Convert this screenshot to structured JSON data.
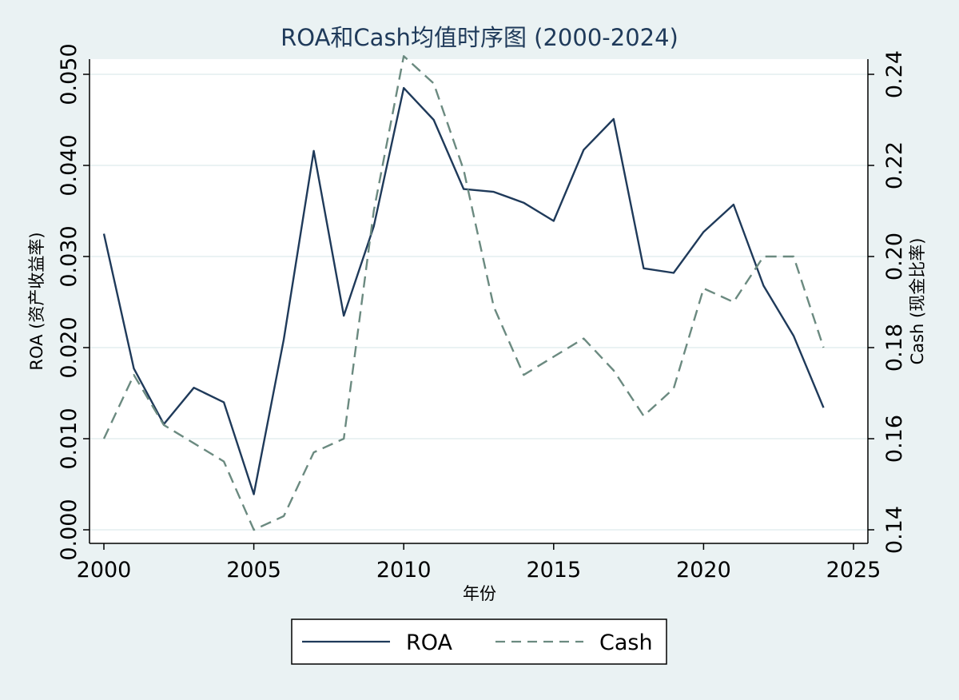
{
  "chart_data": {
    "type": "line",
    "title": "ROA和Cash均值时序图 (2000-2024)",
    "xlabel": "年份",
    "ylabel_left": "ROA (资产收益率)",
    "ylabel_right": "Cash (现金比率)",
    "xlim": [
      2000,
      2025
    ],
    "x_ticks": [
      2000,
      2005,
      2010,
      2015,
      2020,
      2025
    ],
    "ylim_left": [
      0.0,
      0.05
    ],
    "y_ticks_left": [
      "0.000",
      "0.010",
      "0.020",
      "0.030",
      "0.040",
      "0.050"
    ],
    "ylim_right": [
      0.14,
      0.24
    ],
    "y_ticks_right": [
      "0.14",
      "0.16",
      "0.18",
      "0.20",
      "0.22",
      "0.24"
    ],
    "grid": true,
    "legend_position": "bottom",
    "x": [
      2000,
      2001,
      2002,
      2003,
      2004,
      2005,
      2006,
      2007,
      2008,
      2009,
      2010,
      2011,
      2012,
      2013,
      2014,
      2015,
      2016,
      2017,
      2018,
      2019,
      2020,
      2021,
      2022,
      2023,
      2024
    ],
    "series": [
      {
        "name": "ROA",
        "axis": "left",
        "style": "solid",
        "color": "#1f3a5a",
        "values": [
          0.0325,
          0.0177,
          0.0116,
          0.0156,
          0.014,
          0.0039,
          0.0209,
          0.0416,
          0.0235,
          0.0333,
          0.0485,
          0.045,
          0.0374,
          0.0371,
          0.0359,
          0.0339,
          0.0417,
          0.0451,
          0.0287,
          0.0282,
          0.0327,
          0.0357,
          0.0268,
          0.0213,
          0.0134
        ]
      },
      {
        "name": "Cash",
        "axis": "right",
        "style": "dashed",
        "color": "#6b8a80",
        "values": [
          0.16,
          0.174,
          0.163,
          0.159,
          0.155,
          0.14,
          0.143,
          0.157,
          0.16,
          0.21,
          0.244,
          0.238,
          0.219,
          0.189,
          0.174,
          0.178,
          0.182,
          0.175,
          0.165,
          0.171,
          0.193,
          0.19,
          0.2,
          0.2,
          0.18
        ]
      }
    ]
  }
}
